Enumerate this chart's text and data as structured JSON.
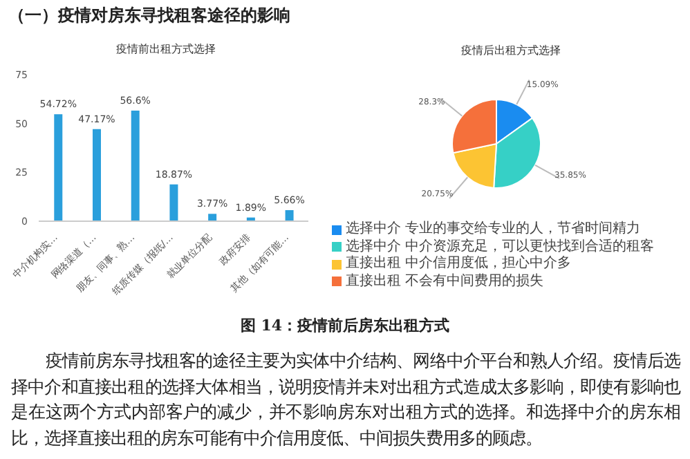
{
  "chart_data": [
    {
      "type": "bar",
      "title": "疫情前出租方式选择",
      "categories": [
        "中介机构实…",
        "网络渠道（…",
        "朋友、同事、熟…",
        "纸质传媒（报纸/…",
        "就业单位分配",
        "政府安排",
        "其他（如有可能…"
      ],
      "values": [
        54.72,
        47.17,
        56.6,
        18.87,
        3.77,
        1.89,
        5.66
      ],
      "value_labels": [
        "54.72%",
        "47.17%",
        "56.6%",
        "18.87%",
        "3.77%",
        "1.89%",
        "5.66%"
      ],
      "color": "#2a9fdc",
      "ylim": [
        0,
        75
      ],
      "yticks": [
        0,
        25,
        50,
        75
      ],
      "annotations": [
        "（一）疫情对房东寻找租客途径的影响",
        "图 14：疫情前后房东出租方式",
        "疫情前房东寻找租客的途径主要为实体中介结构、网络中介平台和熟人介绍。疫情后选择中介和直接出租的选择大体相当，说明疫情并未对出租方式造成太多影响，即使有影响也是在这两个方式内部客户的减少，并不影响房东对出租方式的选择。和选择中介的房东相比，选择直接出租的房东可能有中介信用度低、中间损失费用多的顾虑。"
      ]
    },
    {
      "type": "pie",
      "title": "疫情后出租方式选择",
      "categories": [
        "选择中介 专业的事交给专业的人，节省时间精力",
        "选择中介 中介资源充足，可以更快找到合适的租客",
        "直接出租 中介信用度低，担心中介多",
        "直接出租 不会有中间费用的损失"
      ],
      "values": [
        15.09,
        35.85,
        20.75,
        28.3
      ],
      "value_labels": [
        "15.09%",
        "35.85%",
        "20.75%",
        "28.3%"
      ],
      "colors": [
        "#1a8cf0",
        "#36d0c6",
        "#fcc433",
        "#f5703b"
      ],
      "legend": "bottom"
    }
  ]
}
